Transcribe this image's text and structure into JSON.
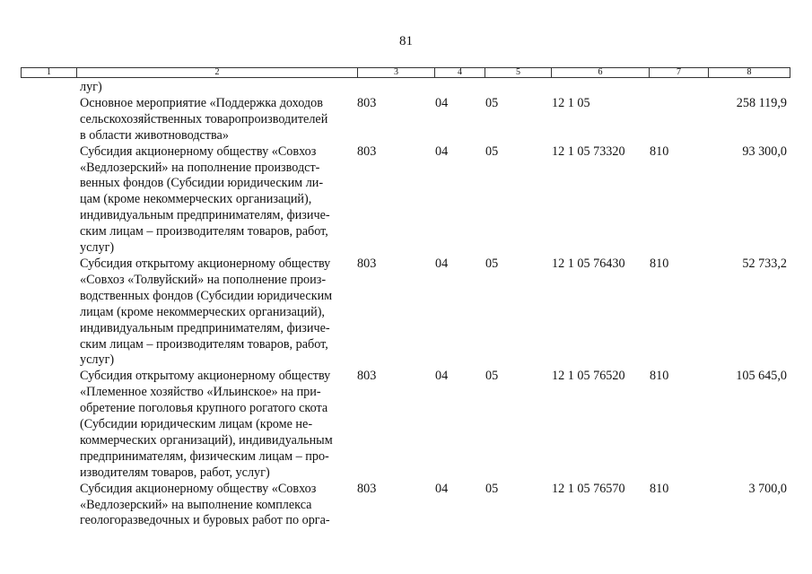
{
  "page_number": "81",
  "header": [
    "1",
    "2",
    "3",
    "4",
    "5",
    "6",
    "7",
    "8"
  ],
  "rows": [
    {
      "text": [
        "луг)"
      ],
      "c3": "",
      "c4": "",
      "c5": "",
      "c6": "",
      "c7": "",
      "c8": ""
    },
    {
      "text": [
        "Основное мероприятие «Поддержка доходов",
        "сельскохозяйственных товаропроизводителей",
        "в области животноводства»"
      ],
      "c3": "803",
      "c4": "04",
      "c5": "05",
      "c6": "12 1 05",
      "c7": "",
      "c8": "258 119,9"
    },
    {
      "text": [
        "Субсидия акционерному обществу «Совхоз",
        "«Ведлозерский» на пополнение производст-",
        "венных фондов (Субсидии юридическим ли-",
        "цам (кроме некоммерческих организаций),",
        "индивидуальным предпринимателям, физиче-",
        "ским лицам – производителям товаров, работ,",
        "услуг)"
      ],
      "c3": "803",
      "c4": "04",
      "c5": "05",
      "c6": "12 1 05 73320",
      "c7": "810",
      "c8": "93 300,0"
    },
    {
      "text": [
        "Субсидия открытому акционерному обществу",
        "«Совхоз «Толвуйский» на пополнение произ-",
        "водственных фондов (Субсидии юридическим",
        "лицам (кроме некоммерческих организаций),",
        "индивидуальным предпринимателям, физиче-",
        "ским лицам – производителям товаров, работ,",
        "услуг)"
      ],
      "c3": "803",
      "c4": "04",
      "c5": "05",
      "c6": "12 1 05 76430",
      "c7": "810",
      "c8": "52 733,2"
    },
    {
      "text": [
        "Субсидия открытому акционерному обществу",
        "«Племенное хозяйство «Ильинское» на при-",
        "обретение поголовья крупного рогатого скота",
        "(Субсидии юридическим лицам (кроме не-",
        "коммерческих организаций), индивидуальным",
        "предпринимателям, физическим лицам – про-",
        "изводителям товаров, работ, услуг)"
      ],
      "c3": "803",
      "c4": "04",
      "c5": "05",
      "c6": "12 1 05 76520",
      "c7": "810",
      "c8": "105 645,0"
    },
    {
      "text": [
        "Субсидия акционерному обществу «Совхоз",
        "«Ведлозерский» на выполнение комплекса",
        "геологоразведочных и буровых работ по орга-"
      ],
      "c3": "803",
      "c4": "04",
      "c5": "05",
      "c6": "12 1 05 76570",
      "c7": "810",
      "c8": "3 700,0"
    }
  ]
}
